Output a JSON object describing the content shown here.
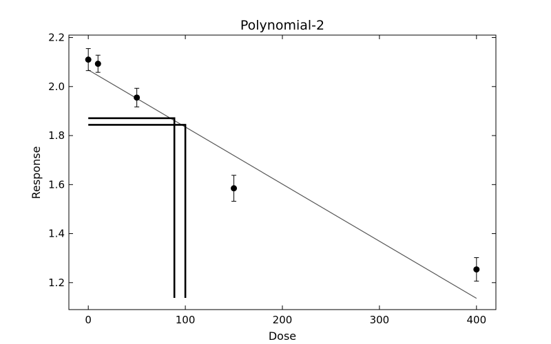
{
  "chart_data": {
    "type": "scatter",
    "title": "Polynomial-2",
    "xlabel": "Dose",
    "ylabel": "Response",
    "xlim": [
      -20,
      420
    ],
    "ylim": [
      1.09,
      2.21
    ],
    "x_ticks": [
      0,
      100,
      200,
      300,
      400
    ],
    "x_tick_labels": [
      "0",
      "100",
      "200",
      "300",
      "400"
    ],
    "y_ticks": [
      1.2,
      1.4,
      1.6,
      1.8,
      2.0,
      2.2
    ],
    "y_tick_labels": [
      "1.2",
      "1.4",
      "1.6",
      "1.8",
      "2.0",
      "2.2"
    ],
    "grid": false,
    "points": [
      {
        "x": 0,
        "y": 2.11,
        "err": 0.045
      },
      {
        "x": 10,
        "y": 2.093,
        "err": 0.035
      },
      {
        "x": 50,
        "y": 1.955,
        "err": 0.038
      },
      {
        "x": 150,
        "y": 1.585,
        "err": 0.053
      },
      {
        "x": 400,
        "y": 1.254,
        "err": 0.048
      }
    ],
    "fit_line": {
      "x": [
        0,
        400
      ],
      "y": [
        2.068,
        1.136
      ]
    },
    "bmd_lines": [
      {
        "x": 88.7,
        "y": 1.871
      },
      {
        "x": 100,
        "y": 1.844
      }
    ],
    "colors": {
      "points": "#000000",
      "fit": "#555555",
      "bmd": "#000000"
    }
  }
}
